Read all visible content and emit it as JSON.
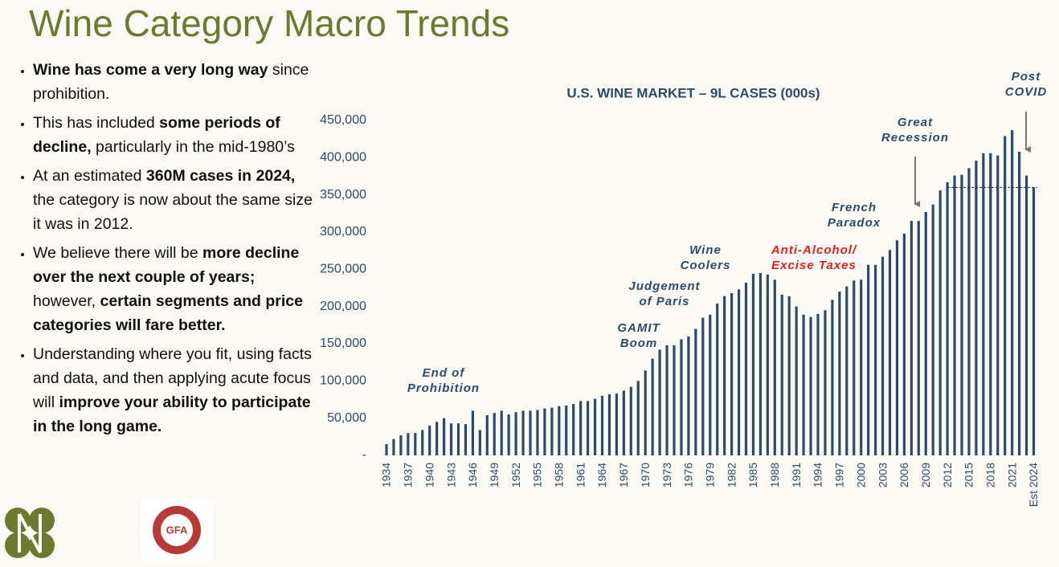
{
  "title": "Wine Category Macro Trends",
  "bullets": [
    [
      {
        "text": "Wine has come a very long way",
        "bold": true
      },
      {
        "text": " since prohibition."
      }
    ],
    [
      {
        "text": "This has included "
      },
      {
        "text": "some periods of decline,",
        "bold": true
      },
      {
        "text": " particularly in the mid-1980’s"
      }
    ],
    [
      {
        "text": "At an estimated "
      },
      {
        "text": "360M cases in 2024,",
        "bold": true
      },
      {
        "text": " the category is now about the same size it was in 2012."
      }
    ],
    [
      {
        "text": "We believe there will be  "
      },
      {
        "text": "more decline over the next couple of years;",
        "bold": true
      },
      {
        "text": " however, "
      },
      {
        "text": "certain segments and price categories will fare better.",
        "bold": true
      }
    ],
    [
      {
        "text": "Understanding where you fit, using facts and data, and then applying acute focus will "
      },
      {
        "text": "improve your ability to participate in the long game.",
        "bold": true
      }
    ]
  ],
  "logo_text": "GFA",
  "chart_data": {
    "type": "bar",
    "title": "U.S. WINE MARKET – 9L CASES (000s)",
    "color": "#2e4a6b",
    "categories": [
      "1934",
      null,
      null,
      "1937",
      null,
      null,
      "1940",
      null,
      null,
      "1943",
      null,
      null,
      "1946",
      null,
      null,
      "1949",
      null,
      null,
      "1952",
      null,
      null,
      "1955",
      null,
      null,
      "1958",
      null,
      null,
      "1961",
      null,
      null,
      "1964",
      null,
      null,
      "1967",
      null,
      null,
      "1970",
      null,
      null,
      "1973",
      null,
      null,
      "1976",
      null,
      null,
      "1979",
      null,
      null,
      "1982",
      null,
      null,
      "1985",
      null,
      null,
      "1988",
      null,
      null,
      "1991",
      null,
      null,
      "1994",
      null,
      null,
      "1997",
      null,
      null,
      "2000",
      null,
      null,
      "2003",
      null,
      null,
      "2006",
      null,
      null,
      "2009",
      null,
      null,
      "2012",
      null,
      null,
      "2015",
      null,
      null,
      "2018",
      null,
      null,
      "2021",
      null,
      null,
      "Est 2024"
    ],
    "values": [
      15000,
      22000,
      27000,
      30000,
      30000,
      34000,
      40000,
      45000,
      50000,
      43000,
      43000,
      42000,
      60000,
      34000,
      54000,
      57000,
      60000,
      55000,
      58000,
      60000,
      60000,
      61000,
      63000,
      64000,
      66000,
      67000,
      69000,
      73000,
      73000,
      76000,
      80000,
      82000,
      83000,
      87000,
      92000,
      100000,
      114000,
      130000,
      142000,
      148000,
      148000,
      156000,
      160000,
      170000,
      185000,
      189000,
      204000,
      214000,
      218000,
      223000,
      232000,
      244000,
      245000,
      243000,
      236000,
      216000,
      214000,
      200000,
      189000,
      186000,
      190000,
      195000,
      209000,
      220000,
      227000,
      235000,
      236000,
      256000,
      256000,
      267000,
      276000,
      289000,
      298000,
      315000,
      315000,
      327000,
      337000,
      356000,
      367000,
      376000,
      377000,
      386000,
      396000,
      406000,
      406000,
      403000,
      429000,
      437000,
      408000,
      376000,
      360000
    ],
    "ylim": [
      0,
      450000
    ],
    "yticks": [
      {
        "value": 0,
        "label": "-"
      },
      {
        "value": 50000,
        "label": "50,000"
      },
      {
        "value": 100000,
        "label": "100,000"
      },
      {
        "value": 150000,
        "label": "150,000"
      },
      {
        "value": 200000,
        "label": "200,000"
      },
      {
        "value": 250000,
        "label": "250,000"
      },
      {
        "value": 300000,
        "label": "300,000"
      },
      {
        "value": 350000,
        "label": "350,000"
      },
      {
        "value": 400000,
        "label": "400,000"
      },
      {
        "value": 450000,
        "label": "450,000"
      }
    ],
    "grid": false,
    "reference_line": {
      "value": 360000,
      "style": "dashed"
    },
    "annotations": [
      {
        "lines": [
          "End of",
          "Prohibition"
        ],
        "color": "#2e4a6b"
      },
      {
        "lines": [
          "GAMIT",
          "Boom"
        ],
        "color": "#2e4a6b"
      },
      {
        "lines": [
          "Judgement",
          "of Paris"
        ],
        "color": "#2e4a6b"
      },
      {
        "lines": [
          "Wine",
          "Coolers"
        ],
        "color": "#2e4a6b"
      },
      {
        "lines": [
          "Anti-Alcohol/",
          "Excise Taxes"
        ],
        "color": "#e02020"
      },
      {
        "lines": [
          "French",
          "Paradox"
        ],
        "color": "#2e4a6b"
      },
      {
        "lines": [
          "Great",
          "Recession"
        ],
        "color": "#2e4a6b",
        "arrow": true
      },
      {
        "lines": [
          "Post",
          "COVID"
        ],
        "color": "#2e4a6b",
        "arrow": true
      }
    ]
  }
}
